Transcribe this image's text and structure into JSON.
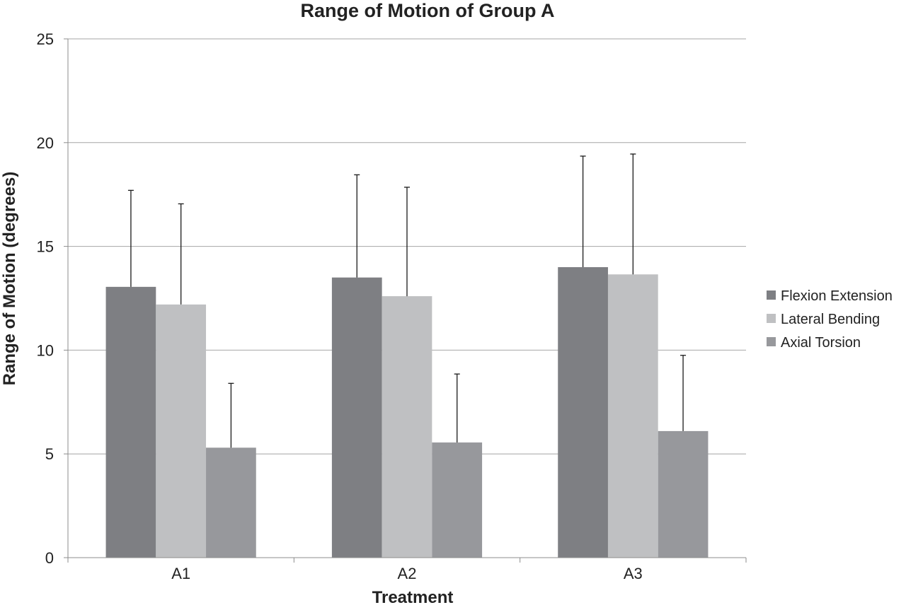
{
  "chart_data": {
    "type": "bar",
    "title": "Range of Motion of Group A",
    "xlabel": "Treatment",
    "ylabel": "Range of Motion (degrees)",
    "categories": [
      "A1",
      "A2",
      "A3"
    ],
    "ylim": [
      0,
      25
    ],
    "yticks": [
      0,
      5,
      10,
      15,
      20,
      25
    ],
    "grid": true,
    "legend_position": "right",
    "series": [
      {
        "name": "Flexion Extension",
        "color": "#7e7f83",
        "values": [
          13.05,
          13.5,
          14.0
        ],
        "error_upper": [
          17.7,
          18.45,
          19.35
        ]
      },
      {
        "name": "Lateral Bending",
        "color": "#bfc0c2",
        "values": [
          12.2,
          12.6,
          13.65
        ],
        "error_upper": [
          17.05,
          17.85,
          19.45
        ]
      },
      {
        "name": "Axial Torsion",
        "color": "#97989c",
        "values": [
          5.3,
          5.55,
          6.1
        ],
        "error_upper": [
          8.4,
          8.85,
          9.75
        ]
      }
    ]
  }
}
